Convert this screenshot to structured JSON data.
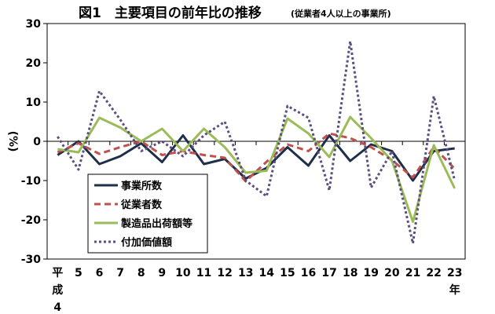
{
  "chart_data": {
    "type": "line",
    "title": "図1　主要項目の前年比の推移",
    "subtitle": "(従業者4人以上の事業所)",
    "ylabel": "(%)",
    "xlabel": "",
    "ylim": [
      -30,
      30
    ],
    "yticks": [
      30,
      20,
      10,
      0,
      -10,
      -20,
      -30
    ],
    "grid": false,
    "legend_position": "bottom-left",
    "categories": [
      "平成4",
      "5",
      "6",
      "7",
      "8",
      "9",
      "10",
      "11",
      "12",
      "13",
      "14",
      "15",
      "16",
      "17",
      "18",
      "19",
      "20",
      "21",
      "22",
      "23年"
    ],
    "tick_labels": [
      {
        "lines": [
          "平",
          "成",
          "4"
        ]
      },
      {
        "lines": [
          "5"
        ]
      },
      {
        "lines": [
          "6"
        ]
      },
      {
        "lines": [
          "7"
        ]
      },
      {
        "lines": [
          "8"
        ]
      },
      {
        "lines": [
          "9"
        ]
      },
      {
        "lines": [
          "10"
        ]
      },
      {
        "lines": [
          "11"
        ]
      },
      {
        "lines": [
          "12"
        ]
      },
      {
        "lines": [
          "13"
        ]
      },
      {
        "lines": [
          "14"
        ]
      },
      {
        "lines": [
          "15"
        ]
      },
      {
        "lines": [
          "16"
        ]
      },
      {
        "lines": [
          "17"
        ]
      },
      {
        "lines": [
          "18"
        ]
      },
      {
        "lines": [
          "19"
        ]
      },
      {
        "lines": [
          "20"
        ]
      },
      {
        "lines": [
          "21"
        ]
      },
      {
        "lines": [
          "22"
        ]
      },
      {
        "lines": [
          "23",
          "年"
        ]
      }
    ],
    "series": [
      {
        "name": "事業所数",
        "color": "#1f2f4a",
        "style": "solid",
        "values": [
          -3.5,
          0,
          -5.8,
          -3.8,
          -0.5,
          -5.3,
          1.5,
          -5.8,
          -4.5,
          -9.5,
          -6.8,
          -1.5,
          -6.2,
          1.5,
          -5,
          -0.8,
          -2.5,
          -10,
          -2.5,
          -1.8
        ]
      },
      {
        "name": "従業者数",
        "color": "#c0504d",
        "style": "dashed",
        "values": [
          -2.8,
          -0.5,
          -3.2,
          -1.5,
          0,
          -3.5,
          -2.5,
          -3.5,
          -4.2,
          -10.2,
          -5.2,
          -0.8,
          -2.5,
          2,
          0.8,
          -1.5,
          -4.8,
          -9.2,
          -1.5,
          -7
        ]
      },
      {
        "name": "製造品出荷額等",
        "color": "#9bbb59",
        "style": "solid",
        "values": [
          -2,
          -2.8,
          6,
          3.5,
          0,
          3.2,
          -2.5,
          3.2,
          -1.5,
          -8,
          -7.5,
          5.8,
          2,
          -4,
          6.2,
          0.8,
          -5,
          -20.5,
          -1,
          -12
        ]
      },
      {
        "name": "付加価値額",
        "color": "#5b4f7f",
        "style": "dotted",
        "values": [
          1.2,
          -7.2,
          12.8,
          5.5,
          -2.5,
          0,
          -3.8,
          1.5,
          5,
          -10,
          -14,
          9,
          6,
          -12.5,
          25.5,
          -11.8,
          -2.5,
          -26,
          11.5,
          -10
        ]
      }
    ]
  }
}
